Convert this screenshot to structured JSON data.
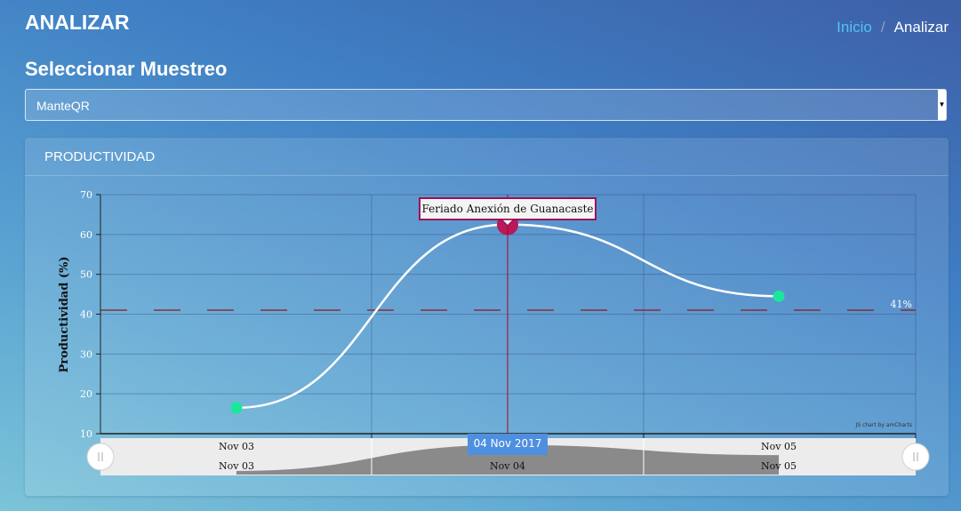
{
  "header": {
    "title": "ANALIZAR"
  },
  "breadcrumb": {
    "home": "Inicio",
    "current": "Analizar"
  },
  "sampling": {
    "section_title": "Seleccionar Muestreo",
    "selected": "ManteQR"
  },
  "card": {
    "title": "PRODUCTIVIDAD"
  },
  "chart_data": {
    "type": "line",
    "ylabel": "Productividad (%)",
    "xlabel": "",
    "ylim": [
      10,
      70
    ],
    "y_ticks": [
      10,
      20,
      30,
      40,
      50,
      60,
      70
    ],
    "grid": true,
    "x": [
      "Nov 03",
      "Nov 04",
      "Nov 05"
    ],
    "series": [
      {
        "values": [
          16.5,
          62.5,
          44.5
        ],
        "color": "#ffffff",
        "bullet_color": "#19e89a",
        "highlight_color": "#b8195a"
      }
    ],
    "guides": [
      {
        "value": 41,
        "label": "41%",
        "color": "#8b1a1a",
        "style": "dashed"
      }
    ],
    "annotations": [
      {
        "x": "Nov 04",
        "text": "Feriado Anexión de Guanacaste"
      }
    ],
    "cursor": {
      "x": "Nov 04",
      "label": "04 Nov 2017",
      "color": "#b00020"
    },
    "scrollbar": {
      "labels": [
        "Nov 03",
        "Nov 04",
        "Nov 05"
      ],
      "range_labels": [
        "Nov 03",
        "Nov 05"
      ]
    },
    "credit": "JS chart by amCharts"
  }
}
